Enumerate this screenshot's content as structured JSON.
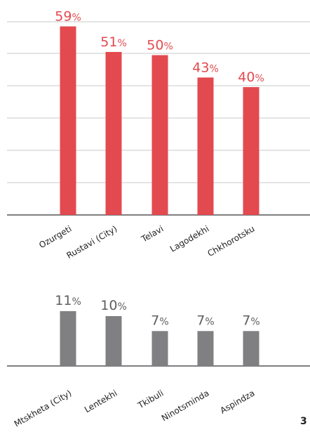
{
  "chart_data": [
    {
      "type": "bar",
      "categories": [
        "Ozurgeti",
        "Rustavi (City)",
        "Telavi",
        "Lagodekhi",
        "Chkhorotsku"
      ],
      "values": [
        59,
        51,
        50,
        43,
        40
      ],
      "value_labels": [
        "59",
        "51",
        "50",
        "43",
        "40"
      ],
      "unit_suffix": "%",
      "ylim": [
        0,
        60
      ],
      "grid": true,
      "color": "#e34a4f",
      "title": "",
      "xlabel": "",
      "ylabel": ""
    },
    {
      "type": "bar",
      "categories": [
        "Mtskheta (City)",
        "Lentekhi",
        "Tkibuli",
        "Ninotsminda",
        "Aspindza"
      ],
      "values": [
        11,
        10,
        7,
        7,
        7
      ],
      "value_labels": [
        "11",
        "10",
        "7",
        "7",
        "7"
      ],
      "unit_suffix": "%",
      "ylim": [
        0,
        60
      ],
      "grid": false,
      "color": "#808083",
      "title": "",
      "xlabel": "",
      "ylabel": ""
    }
  ],
  "page": {
    "corner_text": "3"
  }
}
